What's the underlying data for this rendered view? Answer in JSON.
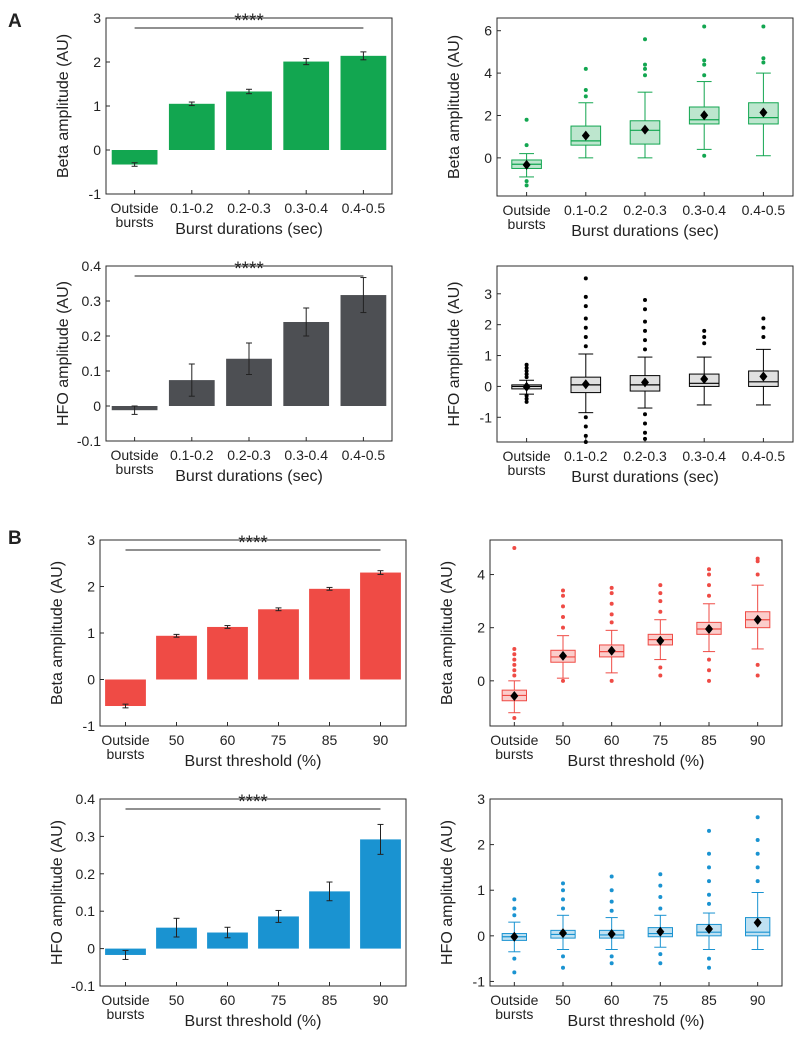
{
  "figure": {
    "panel_labels": [
      "A",
      "B"
    ],
    "colors": {
      "beta_duration": "#12a650",
      "hfo_duration": "#4d4f53",
      "beta_threshold": "#ef4b45",
      "hfo_threshold": "#1a93d1",
      "box_hfo_duration": "#000000"
    }
  },
  "chart_data": [
    {
      "id": "A-bar-beta",
      "type": "bar",
      "panel": "A",
      "categories": [
        "Outside bursts",
        "0.1-0.2",
        "0.2-0.3",
        "0.3-0.4",
        "0.4-0.5"
      ],
      "values": [
        -0.33,
        1.05,
        1.33,
        2.01,
        2.14
      ],
      "errors": [
        0.04,
        0.04,
        0.05,
        0.07,
        0.09
      ],
      "xlabel": "Burst durations (sec)",
      "ylabel": "Beta amplitude (AU)",
      "ylim": [
        -1,
        3
      ],
      "yticks": [
        -1,
        0,
        1,
        2,
        3
      ],
      "significance": "****",
      "color": "#12a650"
    },
    {
      "id": "A-box-beta",
      "type": "box",
      "panel": "A",
      "categories": [
        "Outside bursts",
        "0.1-0.2",
        "0.2-0.3",
        "0.3-0.4",
        "0.4-0.5"
      ],
      "boxes": [
        {
          "q1": -0.5,
          "median": -0.3,
          "q3": -0.1,
          "wlo": -0.9,
          "whi": 0.2,
          "mean": -0.33,
          "outliers": [
            0.6,
            1.8,
            -1.1,
            -1.3
          ]
        },
        {
          "q1": 0.6,
          "median": 0.8,
          "q3": 1.5,
          "wlo": 0.0,
          "whi": 2.6,
          "mean": 1.05,
          "outliers": [
            2.9,
            3.2,
            4.2
          ]
        },
        {
          "q1": 0.65,
          "median": 1.3,
          "q3": 1.75,
          "wlo": 0.0,
          "whi": 3.1,
          "mean": 1.33,
          "outliers": [
            3.9,
            4.2,
            4.4,
            5.6
          ]
        },
        {
          "q1": 1.6,
          "median": 1.8,
          "q3": 2.4,
          "wlo": 0.4,
          "whi": 3.6,
          "mean": 2.01,
          "outliers": [
            0.1,
            3.9,
            4.4,
            4.6,
            6.2
          ]
        },
        {
          "q1": 1.6,
          "median": 1.9,
          "q3": 2.6,
          "wlo": 0.1,
          "whi": 4.0,
          "mean": 2.14,
          "outliers": [
            4.5,
            4.7,
            6.2
          ]
        }
      ],
      "xlabel": "Burst durations (sec)",
      "ylabel": "Beta amplitude (AU)",
      "ylim": [
        -1.8,
        6.6
      ],
      "yticks": [
        0,
        2,
        4,
        6
      ],
      "color": "#12a650"
    },
    {
      "id": "A-bar-hfo",
      "type": "bar",
      "panel": "A",
      "categories": [
        "Outside bursts",
        "0.1-0.2",
        "0.2-0.3",
        "0.3-0.4",
        "0.4-0.5"
      ],
      "values": [
        -0.012,
        0.074,
        0.135,
        0.24,
        0.317
      ],
      "errors": [
        0.012,
        0.046,
        0.045,
        0.04,
        0.05
      ],
      "xlabel": "Burst durations (sec)",
      "ylabel": "HFO amplitude (AU)",
      "ylim": [
        -0.1,
        0.4
      ],
      "yticks": [
        -0.1,
        0,
        0.1,
        0.2,
        0.3,
        0.4
      ],
      "significance": "****",
      "color": "#4d4f53"
    },
    {
      "id": "A-box-hfo",
      "type": "box",
      "panel": "A",
      "categories": [
        "Outside bursts",
        "0.1-0.2",
        "0.2-0.3",
        "0.3-0.4",
        "0.4-0.5"
      ],
      "boxes": [
        {
          "q1": -0.08,
          "median": 0.0,
          "q3": 0.05,
          "wlo": -0.25,
          "whi": 0.2,
          "mean": -0.01,
          "outliers": [
            0.3,
            0.4,
            0.5,
            0.6,
            0.7,
            -0.3,
            -0.4,
            -0.5
          ]
        },
        {
          "q1": -0.2,
          "median": 0.05,
          "q3": 0.3,
          "wlo": -0.85,
          "whi": 1.05,
          "mean": 0.07,
          "outliers": [
            1.3,
            1.6,
            1.9,
            2.2,
            2.6,
            2.9,
            3.5,
            -1.0,
            -1.3,
            -1.6,
            -1.8
          ]
        },
        {
          "q1": -0.15,
          "median": 0.05,
          "q3": 0.35,
          "wlo": -0.7,
          "whi": 0.95,
          "mean": 0.13,
          "outliers": [
            1.2,
            1.5,
            1.8,
            2.1,
            2.5,
            2.8,
            -0.9,
            -1.2,
            -1.5,
            -1.7
          ]
        },
        {
          "q1": 0.0,
          "median": 0.1,
          "q3": 0.4,
          "wlo": -0.6,
          "whi": 0.95,
          "mean": 0.24,
          "outliers": [
            1.4,
            1.6,
            1.8
          ]
        },
        {
          "q1": 0.0,
          "median": 0.15,
          "q3": 0.5,
          "wlo": -0.6,
          "whi": 1.2,
          "mean": 0.32,
          "outliers": [
            1.6,
            1.9,
            2.2
          ]
        }
      ],
      "xlabel": "Burst durations (sec)",
      "ylabel": "HFO amplitude (AU)",
      "ylim": [
        -1.8,
        3.9
      ],
      "yticks": [
        -1,
        0,
        1,
        2,
        3
      ],
      "color": "#000000"
    },
    {
      "id": "B-bar-beta",
      "type": "bar",
      "panel": "B",
      "categories": [
        "Outside bursts",
        "50",
        "60",
        "75",
        "85",
        "90"
      ],
      "values": [
        -0.57,
        0.94,
        1.13,
        1.51,
        1.95,
        2.3
      ],
      "errors": [
        0.04,
        0.03,
        0.03,
        0.03,
        0.03,
        0.04
      ],
      "xlabel": "Burst threshold (%)",
      "ylabel": "Beta amplitude (AU)",
      "ylim": [
        -1,
        3
      ],
      "yticks": [
        -1,
        0,
        1,
        2,
        3
      ],
      "significance": "****",
      "color": "#ef4b45"
    },
    {
      "id": "B-box-beta",
      "type": "box",
      "panel": "B",
      "categories": [
        "Outside bursts",
        "50",
        "60",
        "75",
        "85",
        "90"
      ],
      "boxes": [
        {
          "q1": -0.75,
          "median": -0.55,
          "q3": -0.35,
          "wlo": -1.2,
          "whi": 0.0,
          "mean": -0.57,
          "outliers": [
            0.2,
            0.4,
            0.6,
            0.8,
            1.0,
            1.2,
            5.0,
            -1.4
          ]
        },
        {
          "q1": 0.7,
          "median": 0.9,
          "q3": 1.15,
          "wlo": 0.1,
          "whi": 1.7,
          "mean": 0.94,
          "outliers": [
            2.0,
            2.4,
            2.8,
            3.2,
            3.4,
            0.0
          ]
        },
        {
          "q1": 0.9,
          "median": 1.1,
          "q3": 1.35,
          "wlo": 0.3,
          "whi": 1.9,
          "mean": 1.13,
          "outliers": [
            2.2,
            2.5,
            2.9,
            3.3,
            3.5,
            0.0
          ]
        },
        {
          "q1": 1.35,
          "median": 1.55,
          "q3": 1.75,
          "wlo": 0.8,
          "whi": 2.3,
          "mean": 1.51,
          "outliers": [
            2.6,
            3.0,
            3.3,
            3.6,
            0.5,
            0.2
          ]
        },
        {
          "q1": 1.75,
          "median": 1.95,
          "q3": 2.2,
          "wlo": 1.1,
          "whi": 2.9,
          "mean": 1.95,
          "outliers": [
            3.2,
            3.6,
            4.0,
            4.2,
            0.8,
            0.4,
            0.0
          ]
        },
        {
          "q1": 2.0,
          "median": 2.3,
          "q3": 2.6,
          "wlo": 1.2,
          "whi": 3.6,
          "mean": 2.3,
          "outliers": [
            4.0,
            4.5,
            4.6,
            0.6,
            0.2
          ]
        }
      ],
      "xlabel": "Burst threshold (%)",
      "ylabel": "Beta amplitude (AU)",
      "ylim": [
        -1.7,
        5.3
      ],
      "yticks": [
        0,
        2,
        4
      ],
      "color": "#ef4b45"
    },
    {
      "id": "B-bar-hfo",
      "type": "bar",
      "panel": "B",
      "categories": [
        "Outside bursts",
        "50",
        "60",
        "75",
        "85",
        "90"
      ],
      "values": [
        -0.017,
        0.056,
        0.043,
        0.086,
        0.153,
        0.292
      ],
      "errors": [
        0.012,
        0.025,
        0.014,
        0.016,
        0.025,
        0.04
      ],
      "xlabel": "Burst threshold (%)",
      "ylabel": "HFO amplitude (AU)",
      "ylim": [
        -0.1,
        0.4
      ],
      "yticks": [
        -0.1,
        0,
        0.1,
        0.2,
        0.3,
        0.4
      ],
      "significance": "****",
      "color": "#1a93d1"
    },
    {
      "id": "B-box-hfo",
      "type": "box",
      "panel": "B",
      "categories": [
        "Outside bursts",
        "50",
        "60",
        "75",
        "85",
        "90"
      ],
      "boxes": [
        {
          "q1": -0.1,
          "median": -0.02,
          "q3": 0.05,
          "wlo": -0.35,
          "whi": 0.3,
          "mean": -0.02,
          "outliers": [
            0.45,
            0.6,
            0.8,
            -0.5,
            -0.8
          ]
        },
        {
          "q1": -0.05,
          "median": 0.03,
          "q3": 0.12,
          "wlo": -0.3,
          "whi": 0.45,
          "mean": 0.06,
          "outliers": [
            0.6,
            0.8,
            1.0,
            1.15,
            -0.45,
            -0.7
          ]
        },
        {
          "q1": -0.05,
          "median": 0.02,
          "q3": 0.12,
          "wlo": -0.3,
          "whi": 0.4,
          "mean": 0.04,
          "outliers": [
            0.55,
            0.75,
            1.0,
            1.3,
            -0.45,
            -0.6
          ]
        },
        {
          "q1": -0.02,
          "median": 0.05,
          "q3": 0.18,
          "wlo": -0.25,
          "whi": 0.45,
          "mean": 0.09,
          "outliers": [
            0.6,
            0.85,
            1.1,
            1.35,
            -0.4,
            -0.6
          ]
        },
        {
          "q1": 0.0,
          "median": 0.08,
          "q3": 0.25,
          "wlo": -0.3,
          "whi": 0.5,
          "mean": 0.15,
          "outliers": [
            0.7,
            0.9,
            1.2,
            1.5,
            1.8,
            2.3,
            -0.5,
            -0.7
          ]
        },
        {
          "q1": 0.0,
          "median": 0.08,
          "q3": 0.4,
          "wlo": -0.3,
          "whi": 0.95,
          "mean": 0.29,
          "outliers": [
            1.2,
            1.5,
            1.8,
            2.1,
            2.6
          ]
        }
      ],
      "xlabel": "Burst threshold (%)",
      "ylabel": "HFO amplitude (AU)",
      "ylim": [
        -1.1,
        3.0
      ],
      "yticks": [
        -1,
        0,
        1,
        2,
        3
      ],
      "color": "#1a93d1"
    }
  ]
}
